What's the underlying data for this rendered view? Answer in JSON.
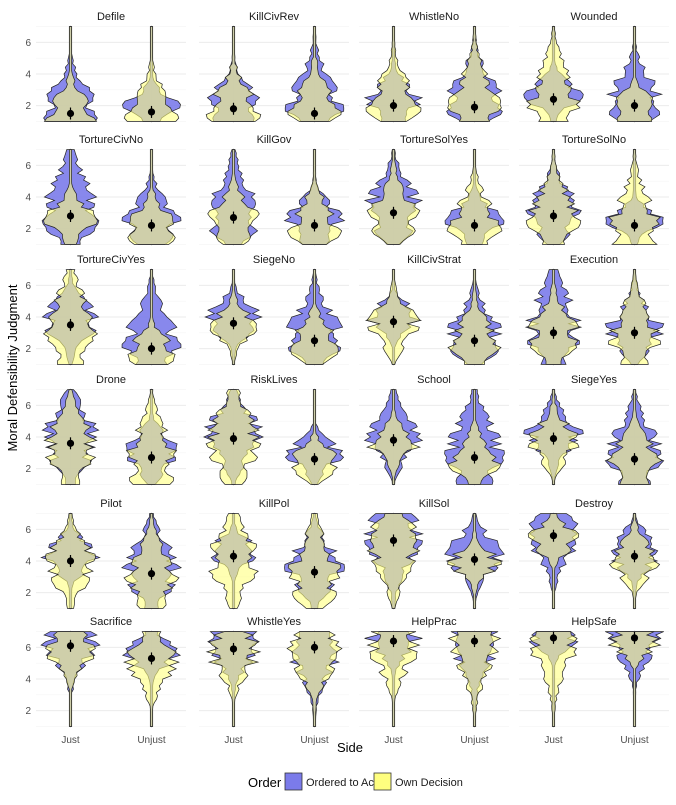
{
  "chart_data": {
    "type": "violin",
    "xlabel": "Side",
    "ylabel": "Moral Defensibility Judgment",
    "categories": [
      "Just",
      "Unjust"
    ],
    "y_ticks": [
      2,
      4,
      6
    ],
    "ylim": [
      0.9,
      7.1
    ],
    "grid": true,
    "legend": {
      "title": "Order",
      "position": "bottom",
      "entries": [
        {
          "label": "Ordered to Act",
          "color": "#7b7bea"
        },
        {
          "label": "Own Decision",
          "color": "#ffff7f"
        }
      ]
    },
    "overlap_color": "#b3b36a",
    "point_color": "#000000",
    "panels": [
      {
        "title": "Defile",
        "means": [
          1.5,
          1.6
        ]
      },
      {
        "title": "KillCivRev",
        "means": [
          1.8,
          1.5
        ]
      },
      {
        "title": "WhistleNo",
        "means": [
          2.0,
          1.9
        ]
      },
      {
        "title": "Wounded",
        "means": [
          2.4,
          2.0
        ]
      },
      {
        "title": "TortureCivNo",
        "means": [
          2.8,
          2.2
        ]
      },
      {
        "title": "KillGov",
        "means": [
          2.7,
          2.2
        ]
      },
      {
        "title": "TortureSolYes",
        "means": [
          3.0,
          2.2
        ]
      },
      {
        "title": "TortureSolNo",
        "means": [
          2.8,
          2.2
        ]
      },
      {
        "title": "TortureCivYes",
        "means": [
          3.5,
          2.0
        ]
      },
      {
        "title": "SiegeNo",
        "means": [
          3.6,
          2.5
        ]
      },
      {
        "title": "KillCivStrat",
        "means": [
          3.7,
          2.5
        ]
      },
      {
        "title": "Execution",
        "means": [
          3.0,
          3.0
        ]
      },
      {
        "title": "Drone",
        "means": [
          3.6,
          2.7
        ]
      },
      {
        "title": "RiskLives",
        "means": [
          3.9,
          2.6
        ]
      },
      {
        "title": "School",
        "means": [
          3.8,
          2.7
        ]
      },
      {
        "title": "SiegeYes",
        "means": [
          3.9,
          2.6
        ]
      },
      {
        "title": "Pilot",
        "means": [
          4.0,
          3.2
        ]
      },
      {
        "title": "KillPol",
        "means": [
          4.3,
          3.3
        ]
      },
      {
        "title": "KillSol",
        "means": [
          5.3,
          4.1
        ]
      },
      {
        "title": "Destroy",
        "means": [
          5.6,
          4.3
        ]
      },
      {
        "title": "Sacrifice",
        "means": [
          6.1,
          5.3
        ]
      },
      {
        "title": "WhistleYes",
        "means": [
          5.9,
          6.0
        ]
      },
      {
        "title": "HelpPrac",
        "means": [
          6.4,
          6.4
        ]
      },
      {
        "title": "HelpSafe",
        "means": [
          6.6,
          6.6
        ]
      }
    ]
  }
}
